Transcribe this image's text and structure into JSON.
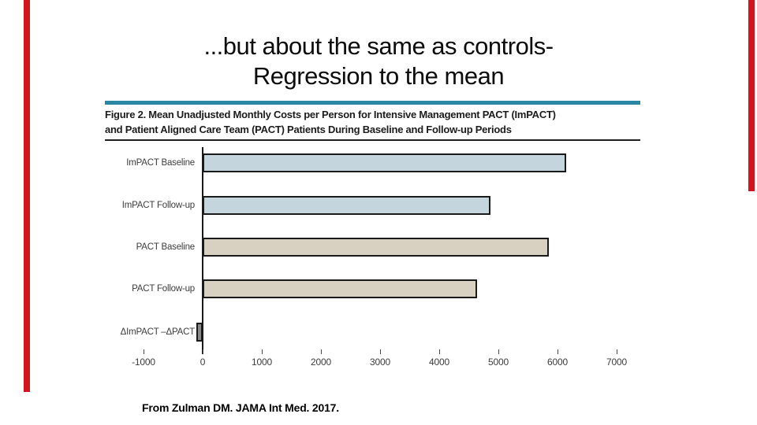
{
  "slide": {
    "title_line1": "...but about the same as controls-",
    "title_line2": "Regression to the mean",
    "citation": "From Zulman DM. JAMA Int Med. 2017."
  },
  "figure": {
    "caption_line1": "Figure 2. Mean Unadjusted Monthly Costs per Person for Intensive Management PACT (ImPACT)",
    "caption_line2": "and Patient Aligned Care Team (PACT) Patients During Baseline and Follow-up Periods"
  },
  "chart_data": {
    "type": "bar",
    "orientation": "horizontal",
    "title": "",
    "xlabel": "",
    "ylabel": "",
    "categories": [
      "ImPACT Baseline",
      "ImPACT Follow-up",
      "PACT Baseline",
      "PACT Follow-up",
      "ΔImPACT –ΔPACT"
    ],
    "values": [
      6150,
      4870,
      5850,
      4640,
      -105
    ],
    "xlim": [
      -1000,
      7000
    ],
    "xticks": [
      -1000,
      0,
      1000,
      2000,
      3000,
      4000,
      5000,
      6000,
      7000
    ],
    "bar_colors": [
      "#c5d5de",
      "#c5d5de",
      "#d8d1c2",
      "#d8d1c2",
      "#8a8a8a"
    ],
    "bar_border_color": "#1a1a1a",
    "grid": false,
    "legend": "none"
  },
  "colors": {
    "accent_red": "#d21420",
    "teal_rule": "#2a87a3",
    "blue_bar": "#c5d5de",
    "tan_bar": "#d8d1c2",
    "gray_bar": "#8a8a8a"
  }
}
